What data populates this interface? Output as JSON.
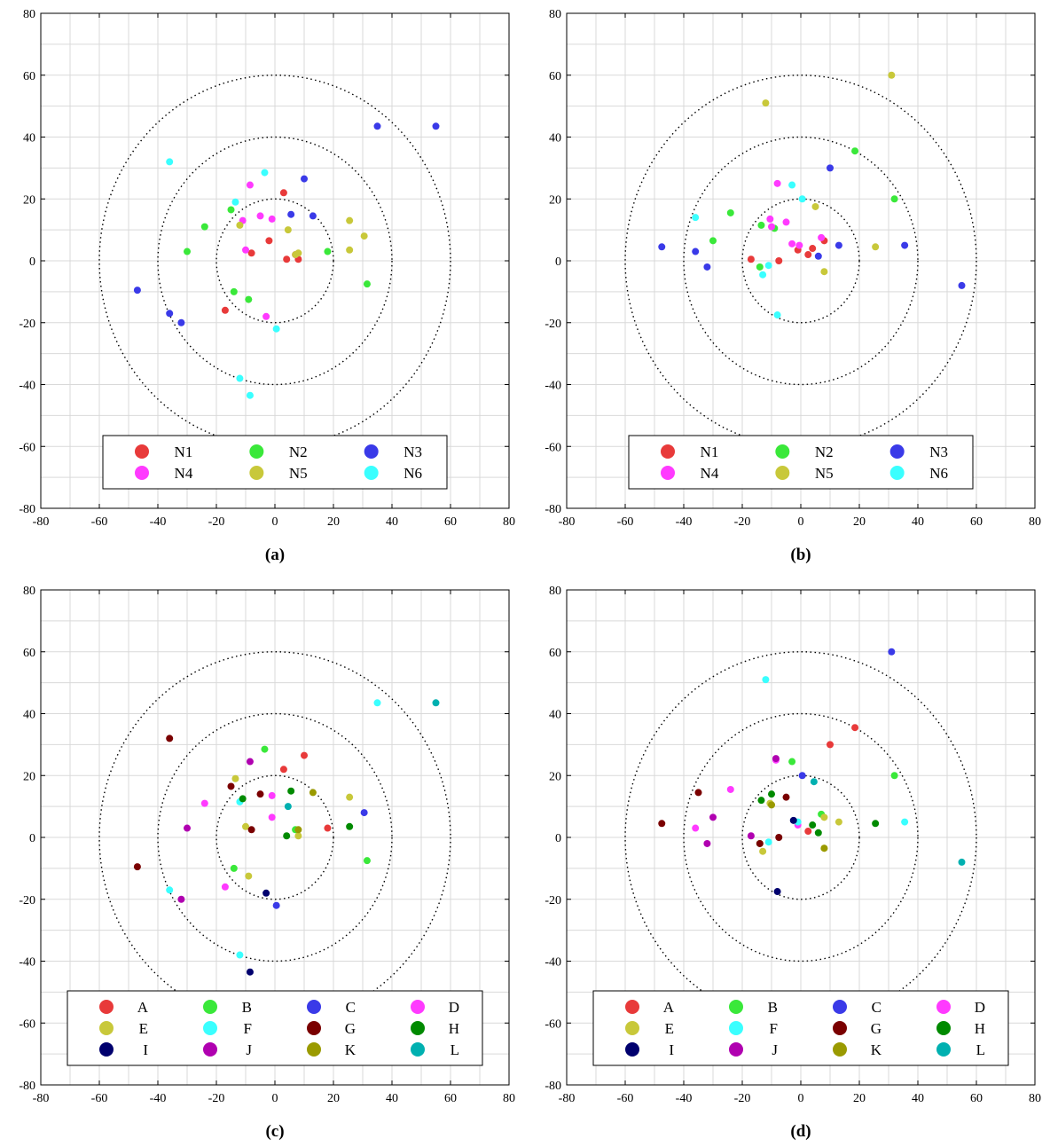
{
  "chart_data": [
    {
      "type": "scatter",
      "caption": "(a)",
      "xlim": [
        -80,
        80
      ],
      "ylim": [
        -80,
        80
      ],
      "xticks": [
        -80,
        -60,
        -40,
        -20,
        0,
        20,
        40,
        60,
        80
      ],
      "yticks": [
        -80,
        -60,
        -40,
        -20,
        0,
        20,
        40,
        60,
        80
      ],
      "grid": true,
      "circles": [
        20,
        40,
        60
      ],
      "legend_placement": "bottom",
      "legend_columns": 3,
      "series": [
        {
          "name": "N1",
          "color": "#e83a3a",
          "points": [
            [
              3,
              22
            ],
            [
              -2,
              6.5
            ],
            [
              -8,
              2.5
            ],
            [
              4,
              0.5
            ],
            [
              8,
              0.5
            ],
            [
              -17,
              -16
            ]
          ]
        },
        {
          "name": "N2",
          "color": "#3ae83a",
          "points": [
            [
              -24,
              11
            ],
            [
              -15,
              16.5
            ],
            [
              -30,
              3
            ],
            [
              18,
              3
            ],
            [
              31.5,
              -7.5
            ],
            [
              -14,
              -10
            ],
            [
              -9,
              -12.5
            ]
          ]
        },
        {
          "name": "N3",
          "color": "#3a3ae8",
          "points": [
            [
              35,
              43.5
            ],
            [
              55,
              43.5
            ],
            [
              10,
              26.5
            ],
            [
              13,
              14.5
            ],
            [
              5.5,
              15
            ],
            [
              -47,
              -9.5
            ],
            [
              -36,
              -17
            ],
            [
              -32,
              -20
            ]
          ]
        },
        {
          "name": "N4",
          "color": "#ff3aff",
          "points": [
            [
              -8.5,
              24.5
            ],
            [
              -5,
              14.5
            ],
            [
              -1,
              13.5
            ],
            [
              -11,
              13
            ],
            [
              -10,
              3.5
            ],
            [
              7,
              2
            ],
            [
              -3,
              -18
            ]
          ]
        },
        {
          "name": "N5",
          "color": "#c8c83a",
          "points": [
            [
              25.5,
              13
            ],
            [
              4.5,
              10
            ],
            [
              -12,
              11.5
            ],
            [
              30.5,
              8
            ],
            [
              25.5,
              3.5
            ],
            [
              8,
              2.5
            ],
            [
              7,
              2
            ]
          ]
        },
        {
          "name": "N6",
          "color": "#3affff",
          "points": [
            [
              -36,
              32
            ],
            [
              -3.5,
              28.5
            ],
            [
              -13.5,
              19
            ],
            [
              0.5,
              -22
            ],
            [
              -12,
              -38
            ],
            [
              -8.5,
              -43.5
            ]
          ]
        }
      ]
    },
    {
      "type": "scatter",
      "caption": "(b)",
      "xlim": [
        -80,
        80
      ],
      "ylim": [
        -80,
        80
      ],
      "xticks": [
        -80,
        -60,
        -40,
        -20,
        0,
        20,
        40,
        60,
        80
      ],
      "yticks": [
        -80,
        -60,
        -40,
        -20,
        0,
        20,
        40,
        60,
        80
      ],
      "grid": true,
      "circles": [
        20,
        40,
        60
      ],
      "legend_placement": "bottom",
      "legend_columns": 3,
      "series": [
        {
          "name": "N1",
          "color": "#e83a3a",
          "points": [
            [
              -17,
              0.5
            ],
            [
              -7.5,
              0
            ],
            [
              -1,
              3.5
            ],
            [
              2.5,
              2
            ],
            [
              4,
              4
            ],
            [
              8,
              6.5
            ]
          ]
        },
        {
          "name": "N2",
          "color": "#3ae83a",
          "points": [
            [
              18.5,
              35.5
            ],
            [
              32,
              20
            ],
            [
              -24,
              15.5
            ],
            [
              -13.5,
              11.5
            ],
            [
              -9,
              10.5
            ],
            [
              -30,
              6.5
            ],
            [
              -14,
              -2
            ]
          ]
        },
        {
          "name": "N3",
          "color": "#3a3ae8",
          "points": [
            [
              10,
              30
            ],
            [
              13,
              5
            ],
            [
              6,
              1.5
            ],
            [
              35.5,
              5
            ],
            [
              -47.5,
              4.5
            ],
            [
              -36,
              3
            ],
            [
              -32,
              -2
            ],
            [
              55,
              -8
            ]
          ]
        },
        {
          "name": "N4",
          "color": "#ff3aff",
          "points": [
            [
              -8,
              25
            ],
            [
              -10.5,
              13.5
            ],
            [
              -5,
              12.5
            ],
            [
              -3,
              5.5
            ],
            [
              -0.5,
              5
            ],
            [
              7,
              7.5
            ],
            [
              -10,
              11
            ]
          ]
        },
        {
          "name": "N5",
          "color": "#c8c83a",
          "points": [
            [
              31,
              60
            ],
            [
              -12,
              51
            ],
            [
              5,
              17.5
            ],
            [
              25.5,
              4.5
            ],
            [
              8,
              -3.5
            ]
          ]
        },
        {
          "name": "N6",
          "color": "#3affff",
          "points": [
            [
              -3,
              24.5
            ],
            [
              0.5,
              20
            ],
            [
              -36,
              14
            ],
            [
              -11,
              -1.5
            ],
            [
              -13,
              -4.5
            ],
            [
              -8,
              -17.5
            ]
          ]
        }
      ]
    },
    {
      "type": "scatter",
      "caption": "(c)",
      "xlim": [
        -80,
        80
      ],
      "ylim": [
        -80,
        80
      ],
      "xticks": [
        -80,
        -60,
        -40,
        -20,
        0,
        20,
        40,
        60,
        80
      ],
      "yticks": [
        -80,
        -60,
        -40,
        -20,
        0,
        20,
        40,
        60,
        80
      ],
      "grid": true,
      "circles": [
        20,
        40,
        60
      ],
      "legend_placement": "bottom",
      "legend_columns": 4,
      "series": [
        {
          "name": "A",
          "color": "#e83a3a",
          "points": [
            [
              3,
              22
            ],
            [
              10,
              26.5
            ],
            [
              18,
              3
            ]
          ]
        },
        {
          "name": "B",
          "color": "#3ae83a",
          "points": [
            [
              -3.5,
              28.5
            ],
            [
              31.5,
              -7.5
            ],
            [
              -14,
              -10
            ],
            [
              7,
              2.5
            ]
          ]
        },
        {
          "name": "C",
          "color": "#3a3ae8",
          "points": [
            [
              30.5,
              8
            ],
            [
              0.5,
              -22
            ]
          ]
        },
        {
          "name": "D",
          "color": "#ff3aff",
          "points": [
            [
              -24,
              11
            ],
            [
              -1,
              13.5
            ],
            [
              -1,
              6.5
            ],
            [
              -17,
              -16
            ]
          ]
        },
        {
          "name": "E",
          "color": "#c8c83a",
          "points": [
            [
              -13.5,
              19
            ],
            [
              25.5,
              13
            ],
            [
              -10,
              3.5
            ],
            [
              -9,
              -12.5
            ],
            [
              8,
              0.5
            ]
          ]
        },
        {
          "name": "F",
          "color": "#3affff",
          "points": [
            [
              35,
              43.5
            ],
            [
              -12,
              11.5
            ],
            [
              -36,
              -17
            ],
            [
              -12,
              -38
            ]
          ]
        },
        {
          "name": "G",
          "color": "#7a0000",
          "points": [
            [
              -36,
              32
            ],
            [
              -15,
              16.5
            ],
            [
              -5,
              14
            ],
            [
              -8,
              2.5
            ],
            [
              -47,
              -9.5
            ]
          ]
        },
        {
          "name": "H",
          "color": "#008a00",
          "points": [
            [
              5.5,
              15
            ],
            [
              -11,
              12.5
            ],
            [
              25.5,
              3.5
            ],
            [
              4,
              0.5
            ]
          ]
        },
        {
          "name": "I",
          "color": "#00006e",
          "points": [
            [
              -3,
              -18
            ],
            [
              -8.5,
              -43.5
            ]
          ]
        },
        {
          "name": "J",
          "color": "#b000b0",
          "points": [
            [
              -8.5,
              24.5
            ],
            [
              -30,
              3
            ],
            [
              -32,
              -20
            ]
          ]
        },
        {
          "name": "K",
          "color": "#9a9a00",
          "points": [
            [
              13,
              14.5
            ],
            [
              8,
              2.5
            ]
          ]
        },
        {
          "name": "L",
          "color": "#00b0b0",
          "points": [
            [
              55,
              43.5
            ],
            [
              4.5,
              10
            ]
          ]
        }
      ]
    },
    {
      "type": "scatter",
      "caption": "(d)",
      "xlim": [
        -80,
        80
      ],
      "ylim": [
        -80,
        80
      ],
      "xticks": [
        -80,
        -60,
        -40,
        -20,
        0,
        20,
        40,
        60,
        80
      ],
      "yticks": [
        -80,
        -60,
        -40,
        -20,
        0,
        20,
        40,
        60,
        80
      ],
      "grid": true,
      "circles": [
        20,
        40,
        60
      ],
      "legend_placement": "bottom",
      "legend_columns": 4,
      "series": [
        {
          "name": "A",
          "color": "#e83a3a",
          "points": [
            [
              18.5,
              35.5
            ],
            [
              10,
              30
            ],
            [
              2.5,
              2
            ]
          ]
        },
        {
          "name": "B",
          "color": "#3ae83a",
          "points": [
            [
              -3,
              24.5
            ],
            [
              32,
              20
            ],
            [
              7,
              7.5
            ],
            [
              -14,
              -2
            ]
          ]
        },
        {
          "name": "C",
          "color": "#3a3ae8",
          "points": [
            [
              31,
              60
            ],
            [
              0.5,
              20
            ]
          ]
        },
        {
          "name": "D",
          "color": "#ff3aff",
          "points": [
            [
              -24,
              15.5
            ],
            [
              -8.5,
              25
            ],
            [
              -36,
              3
            ],
            [
              -1,
              4
            ]
          ]
        },
        {
          "name": "E",
          "color": "#c8c83a",
          "points": [
            [
              -10.5,
              11
            ],
            [
              13,
              5
            ],
            [
              -13,
              -4.5
            ],
            [
              8,
              -3.5
            ],
            [
              8,
              6.5
            ]
          ]
        },
        {
          "name": "F",
          "color": "#3affff",
          "points": [
            [
              -12,
              51
            ],
            [
              35.5,
              5
            ],
            [
              -11,
              -1.5
            ],
            [
              -1,
              5
            ]
          ]
        },
        {
          "name": "G",
          "color": "#7a0000",
          "points": [
            [
              -35,
              14.5
            ],
            [
              -5,
              13
            ],
            [
              -47.5,
              4.5
            ],
            [
              -7.5,
              0
            ],
            [
              -14,
              -2
            ]
          ]
        },
        {
          "name": "H",
          "color": "#008a00",
          "points": [
            [
              -10,
              14
            ],
            [
              -13.5,
              12
            ],
            [
              25.5,
              4.5
            ],
            [
              4,
              4
            ],
            [
              6,
              1.5
            ]
          ]
        },
        {
          "name": "I",
          "color": "#00006e",
          "points": [
            [
              -2.5,
              5.5
            ],
            [
              -8,
              -17.5
            ]
          ]
        },
        {
          "name": "J",
          "color": "#b000b0",
          "points": [
            [
              -8.5,
              25.5
            ],
            [
              -30,
              6.5
            ],
            [
              -32,
              -2
            ],
            [
              -17,
              0.5
            ]
          ]
        },
        {
          "name": "K",
          "color": "#9a9a00",
          "points": [
            [
              8,
              -3.5
            ],
            [
              -10,
              10.5
            ]
          ]
        },
        {
          "name": "L",
          "color": "#00b0b0",
          "points": [
            [
              4.5,
              18
            ],
            [
              55,
              -8
            ]
          ]
        }
      ]
    }
  ]
}
